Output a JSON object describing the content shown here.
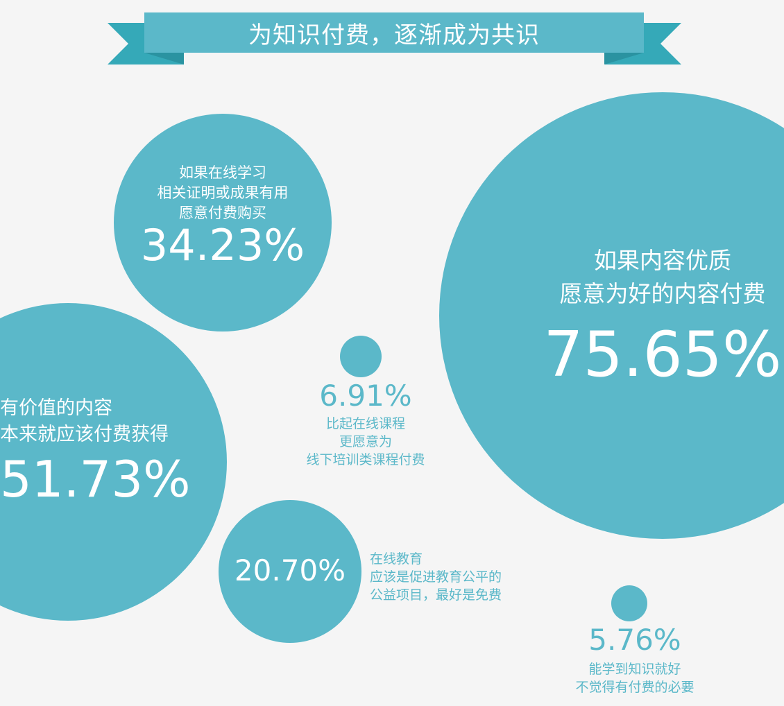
{
  "title": "为知识付费，逐渐成为共识",
  "colors": {
    "bubble": "#5bb8c9",
    "ribbon_tail": "#35a9b8",
    "background": "#f5f5f5"
  },
  "chart_data": {
    "type": "scatter",
    "title": "为知识付费，逐渐成为共识",
    "points": [
      {
        "value": 75.65,
        "label": "75.65%",
        "caption": [
          "如果内容优质",
          "愿意为好的内容付费"
        ]
      },
      {
        "value": 51.73,
        "label": "51.73%",
        "caption": [
          "有价值的内容",
          "本来就应该付费获得"
        ]
      },
      {
        "value": 34.23,
        "label": "34.23%",
        "caption": [
          "如果在线学习",
          "相关证明或成果有用",
          "愿意付费购买"
        ]
      },
      {
        "value": 20.7,
        "label": "20.70%",
        "caption": [
          "在线教育",
          "应该是促进教育公平的",
          "公益项目，最好是免费"
        ]
      },
      {
        "value": 6.91,
        "label": "6.91%",
        "caption": [
          "比起在线课程",
          "更愿意为",
          "线下培训类课程付费"
        ]
      },
      {
        "value": 5.76,
        "label": "5.76%",
        "caption": [
          "能学到知识就好",
          "不觉得有付费的必要"
        ]
      }
    ]
  }
}
